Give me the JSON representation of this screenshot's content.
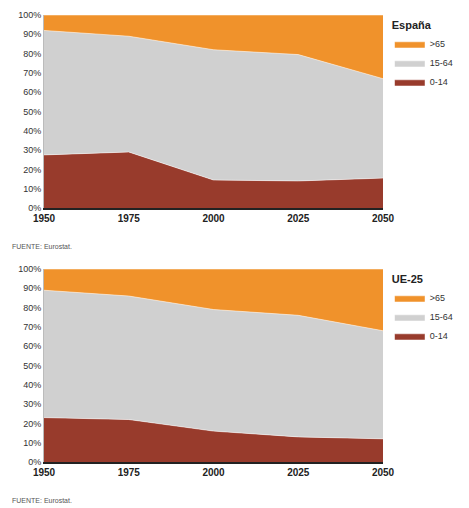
{
  "chart_data": [
    {
      "type": "area",
      "title": "España",
      "source": "FUENTE: Eurostat.",
      "x": [
        1950,
        1975,
        2000,
        2025,
        2050
      ],
      "series": [
        {
          "name": "0-14",
          "color": "#983b2c",
          "values": [
            27.5,
            29,
            14.5,
            14,
            15.5
          ]
        },
        {
          "name": "15-64",
          "color": "#d0d0d0",
          "values": [
            64.5,
            60,
            67.5,
            65.5,
            51.5
          ]
        },
        {
          "name": ">65",
          "color": "#f0922b",
          "values": [
            8,
            11,
            18,
            20.5,
            33
          ]
        }
      ],
      "stacked": true,
      "grid": true,
      "legend": "top right",
      "xlim": [
        1950,
        2050
      ],
      "xticks": [
        1950,
        1975,
        2000,
        2025,
        2050
      ],
      "ylim": [
        0,
        100
      ],
      "yticks": [
        {
          "value": 0,
          "label": "0%"
        },
        {
          "value": 10,
          "label": "10%"
        },
        {
          "value": 20,
          "label": "20%"
        },
        {
          "value": 30,
          "label": "30%"
        },
        {
          "value": 40,
          "label": "40%"
        },
        {
          "value": 50,
          "label": "50%"
        },
        {
          "value": 60,
          "label": "60%"
        },
        {
          "value": 70,
          "label": "70%"
        },
        {
          "value": 80,
          "label": "80%"
        },
        {
          "value": 90,
          "label": "90%"
        },
        {
          "value": 100,
          "label": "100%"
        }
      ]
    },
    {
      "type": "area",
      "title": "UE-25",
      "source": "FUENTE: Eurostat.",
      "x": [
        1950,
        1975,
        2000,
        2025,
        2050
      ],
      "series": [
        {
          "name": "0-14",
          "color": "#983b2c",
          "values": [
            23,
            22,
            16,
            13,
            12
          ]
        },
        {
          "name": "15-64",
          "color": "#d0d0d0",
          "values": [
            66,
            64,
            63,
            63,
            56
          ]
        },
        {
          "name": ">65",
          "color": "#f0922b",
          "values": [
            11,
            14,
            21,
            24,
            32
          ]
        }
      ],
      "stacked": true,
      "grid": true,
      "legend": "top right",
      "xlim": [
        1950,
        2050
      ],
      "xticks": [
        1950,
        1975,
        2000,
        2025,
        2050
      ],
      "ylim": [
        0,
        100
      ],
      "yticks": [
        {
          "value": 0,
          "label": "0%"
        },
        {
          "value": 10,
          "label": "10%"
        },
        {
          "value": 20,
          "label": "20%"
        },
        {
          "value": 30,
          "label": "30%"
        },
        {
          "value": 40,
          "label": "40%"
        },
        {
          "value": 50,
          "label": "50%"
        },
        {
          "value": 60,
          "label": "60%"
        },
        {
          "value": 70,
          "label": "70%"
        },
        {
          "value": 80,
          "label": "80%"
        },
        {
          "value": 90,
          "label": "90%"
        },
        {
          "value": 100,
          "label": "100%"
        }
      ]
    }
  ]
}
